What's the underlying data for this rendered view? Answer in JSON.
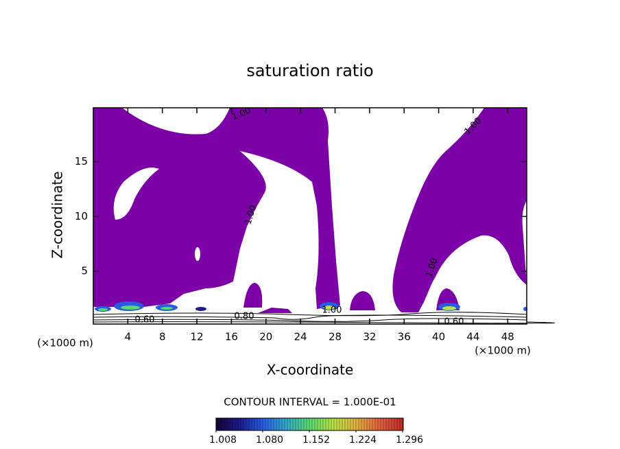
{
  "chart_data": {
    "type": "contour",
    "title": "saturation ratio",
    "x_label": "X-coordinate",
    "y_label": "Z-coordinate",
    "x_unit_label": "(×1000 m)",
    "contour_interval": "CONTOUR INTERVAL = 1.000E-01",
    "xlim": [
      0,
      50.2
    ],
    "ylim": [
      0.2,
      19.9
    ],
    "xticks": [
      4,
      8,
      12,
      16,
      20,
      24,
      28,
      32,
      36,
      40,
      44,
      48
    ],
    "yticks": [
      5,
      10,
      15
    ],
    "fill_color": "#7b00a6",
    "contour_labels": [
      "1.00",
      "1.00",
      "1.00",
      "1.00",
      "1.00",
      "0.60",
      "0.80",
      "0.60"
    ],
    "colorbar": {
      "lim": [
        1.008,
        1.296
      ],
      "ticks": [
        {
          "value": 1.008,
          "label": "1.008"
        },
        {
          "value": 1.08,
          "label": "1.080"
        },
        {
          "value": 1.152,
          "label": "1.152"
        },
        {
          "value": 1.224,
          "label": "1.224"
        },
        {
          "value": 1.296,
          "label": "1.296"
        }
      ],
      "colors": [
        "#1a0033",
        "#1c1c8c",
        "#2a5ce0",
        "#34a8c8",
        "#5ad870",
        "#b8e048",
        "#e0b040",
        "#e06040",
        "#c02828"
      ]
    }
  }
}
